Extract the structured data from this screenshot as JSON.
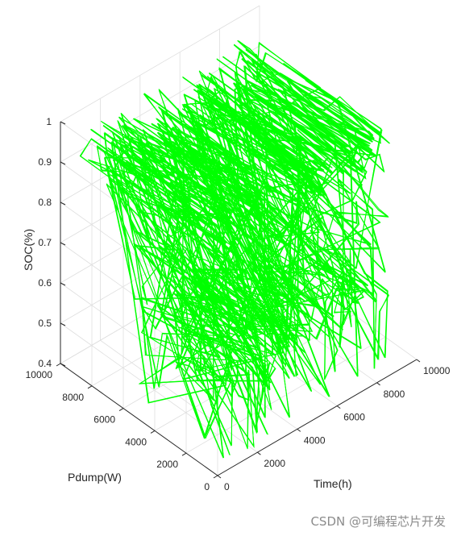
{
  "chart_data": {
    "type": "line",
    "view": "3d",
    "series_color": "#00ff00",
    "grid": true,
    "xlabel": "Time(h)",
    "ylabel": "Pdump(W)",
    "zlabel": "SOC(%)",
    "xlim": [
      0,
      10000
    ],
    "ylim": [
      0,
      10000
    ],
    "zlim": [
      0.4,
      1
    ],
    "x_ticks": [
      "0",
      "2000",
      "4000",
      "6000",
      "8000",
      "10000"
    ],
    "y_ticks": [
      "0",
      "2000",
      "4000",
      "6000",
      "8000",
      "10000"
    ],
    "z_ticks": [
      "0.4",
      "0.5",
      "0.6",
      "0.7",
      "0.8",
      "0.9",
      "1"
    ],
    "description_range": {
      "time_h": [
        0,
        8760
      ],
      "pdump_w": [
        0,
        9000
      ],
      "soc": [
        0.4,
        1.0
      ]
    }
  },
  "watermark": "CSDN @可编程芯片开发"
}
